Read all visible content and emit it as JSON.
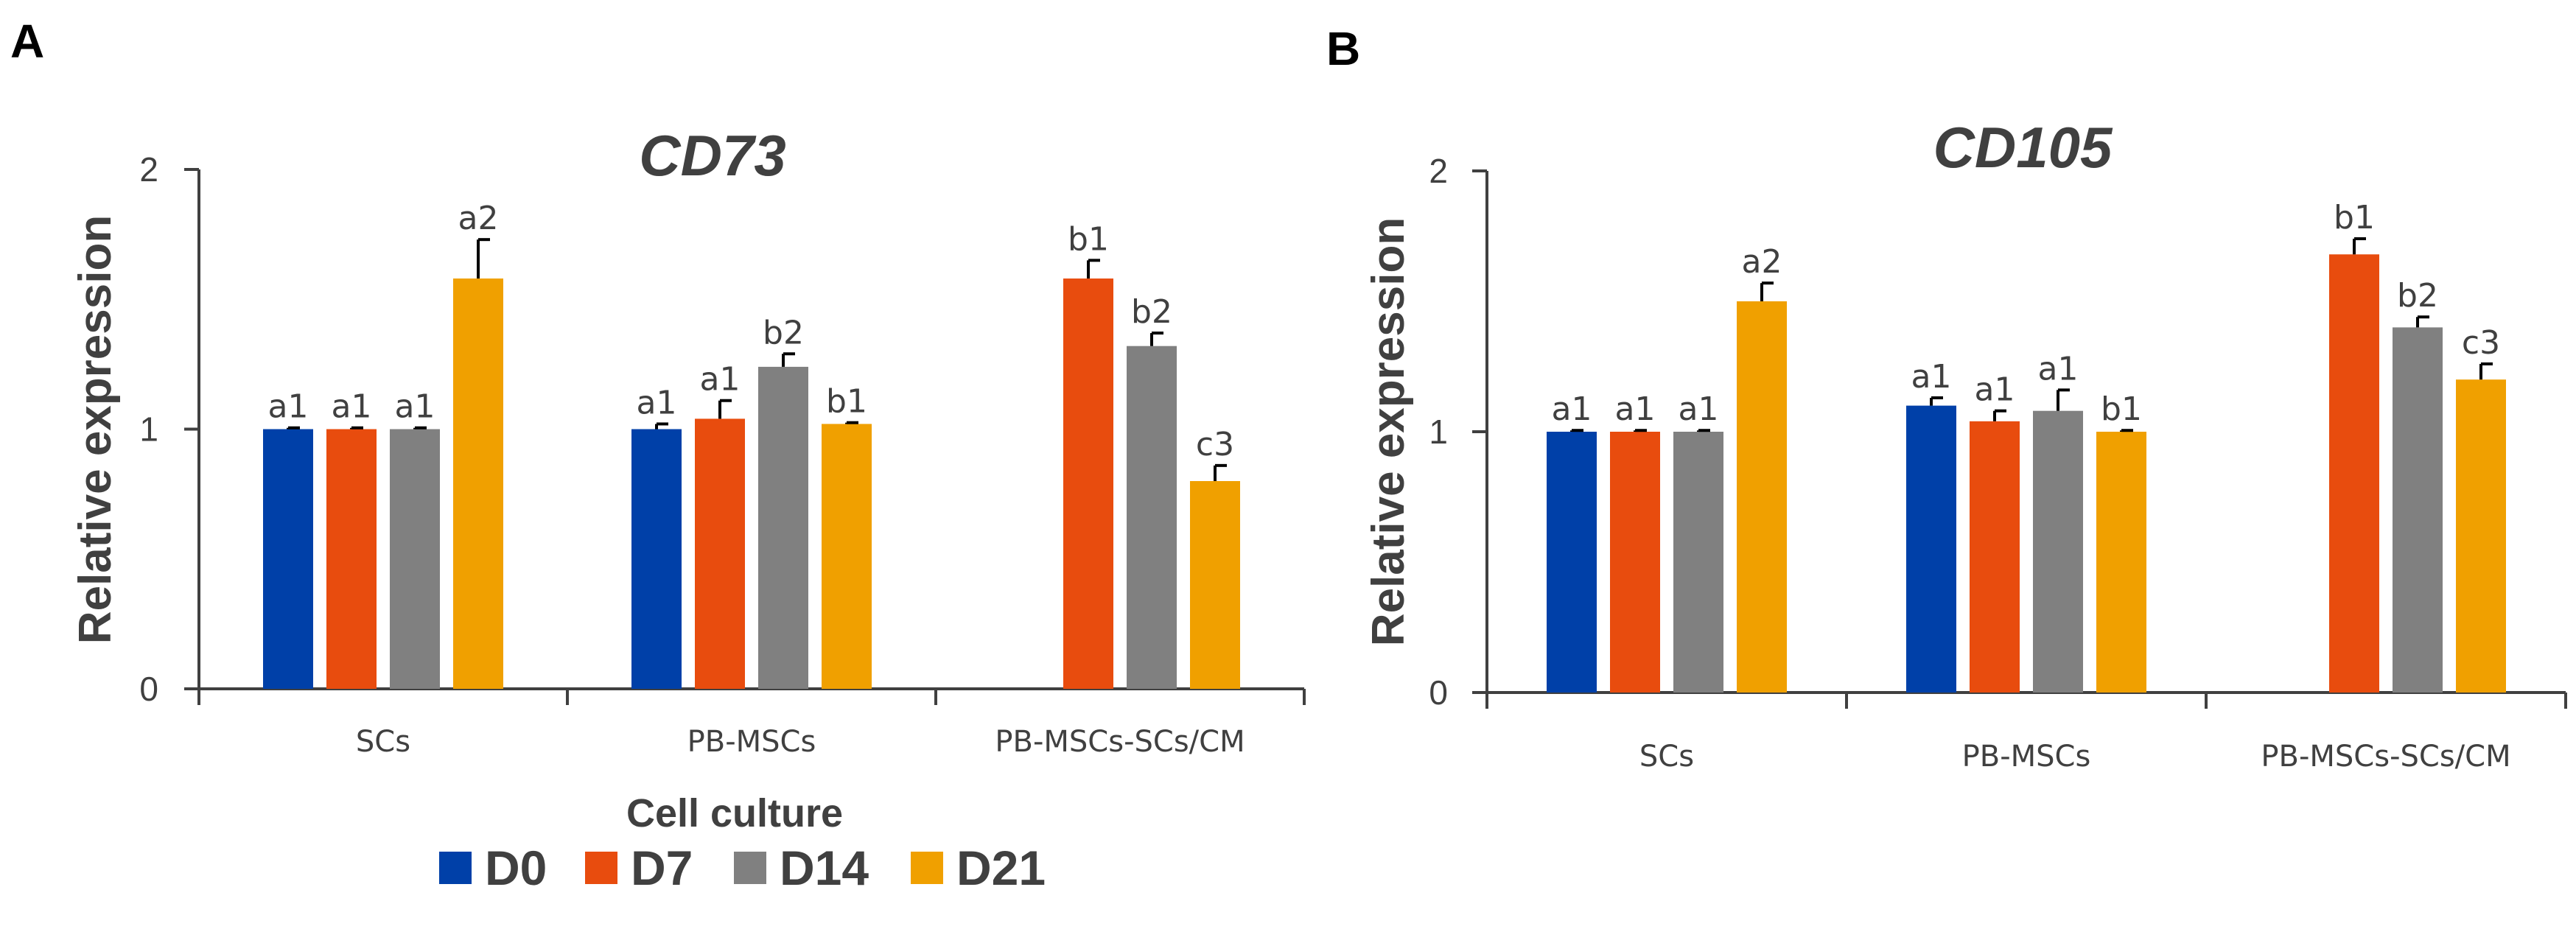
{
  "legend": {
    "title": "Cell culture",
    "items": [
      {
        "label": "D0",
        "color": "#0040A8"
      },
      {
        "label": "D7",
        "color": "#E84C0E"
      },
      {
        "label": "D14",
        "color": "#808080"
      },
      {
        "label": "D21",
        "color": "#F0A000"
      }
    ]
  },
  "chart_data": [
    {
      "panel": "A",
      "type": "bar",
      "title": "CD73",
      "xlabel": "",
      "ylabel": "Relative expression",
      "ylim": [
        0,
        2
      ],
      "yticks": [
        "0",
        "1",
        "2"
      ],
      "categories": [
        "SCs",
        "PB-MSCs",
        "PB-MSCs-SCs/CM"
      ],
      "series": [
        {
          "name": "D0",
          "color": "#0040A8",
          "values": [
            1.0,
            1.0,
            null
          ],
          "errors": [
            0.005,
            0.02,
            null
          ],
          "labels": [
            "a1",
            "a1",
            null
          ]
        },
        {
          "name": "D7",
          "color": "#E84C0E",
          "values": [
            1.0,
            1.04,
            1.58
          ],
          "errors": [
            0.005,
            0.07,
            0.07
          ],
          "labels": [
            "a1",
            "a1",
            "b1"
          ]
        },
        {
          "name": "D14",
          "color": "#808080",
          "values": [
            1.0,
            1.24,
            1.32
          ],
          "errors": [
            0.005,
            0.05,
            0.05
          ],
          "labels": [
            "a1",
            "b2",
            "b2"
          ]
        },
        {
          "name": "D21",
          "color": "#F0A000",
          "values": [
            1.58,
            1.02,
            0.8
          ],
          "errors": [
            0.15,
            0.005,
            0.06
          ],
          "labels": [
            "a2",
            "b1",
            "c3"
          ]
        }
      ]
    },
    {
      "panel": "B",
      "type": "bar",
      "title": "CD105",
      "xlabel": "",
      "ylabel": "Relative expression",
      "ylim": [
        0,
        2
      ],
      "yticks": [
        "0",
        "1",
        "2"
      ],
      "categories": [
        "SCs",
        "PB-MSCs",
        "PB-MSCs-SCs/CM"
      ],
      "series": [
        {
          "name": "D0",
          "color": "#0040A8",
          "values": [
            1.0,
            1.1,
            null
          ],
          "errors": [
            0.005,
            0.03,
            null
          ],
          "labels": [
            "a1",
            "a1",
            null
          ]
        },
        {
          "name": "D7",
          "color": "#E84C0E",
          "values": [
            1.0,
            1.04,
            1.68
          ],
          "errors": [
            0.005,
            0.04,
            0.06
          ],
          "labels": [
            "a1",
            "a1",
            "b1"
          ]
        },
        {
          "name": "D14",
          "color": "#808080",
          "values": [
            1.0,
            1.08,
            1.4
          ],
          "errors": [
            0.005,
            0.08,
            0.04
          ],
          "labels": [
            "a1",
            "a1",
            "b2"
          ]
        },
        {
          "name": "D21",
          "color": "#F0A000",
          "values": [
            1.5,
            1.0,
            1.2
          ],
          "errors": [
            0.07,
            0.005,
            0.06
          ],
          "labels": [
            "a2",
            "b1",
            "c3"
          ]
        }
      ]
    }
  ]
}
